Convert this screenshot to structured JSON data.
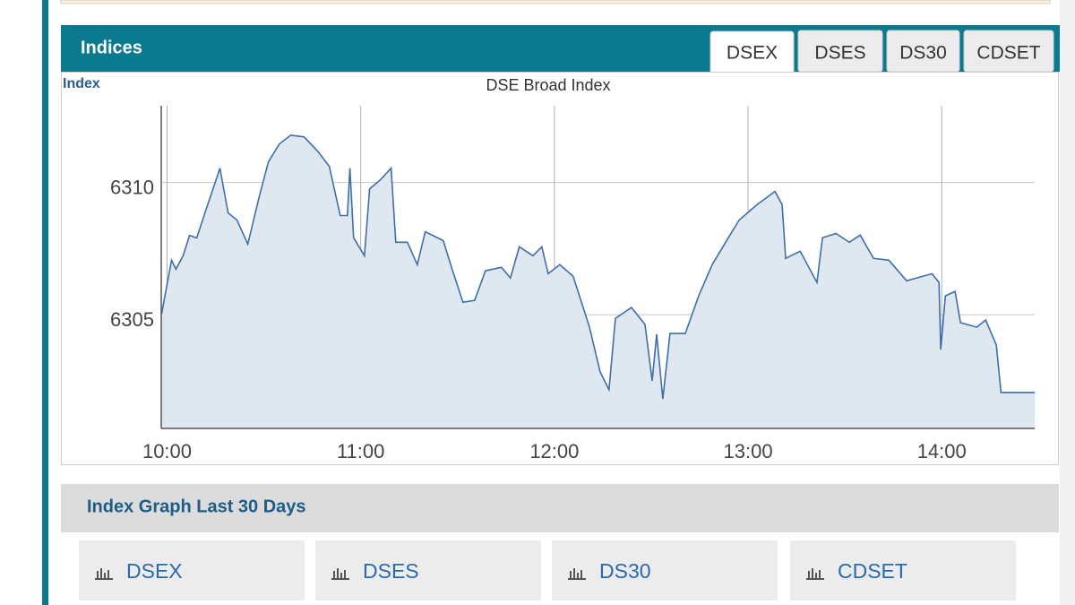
{
  "header": {
    "title": "Indices",
    "tabs": [
      "DSEX",
      "DSES",
      "DS30",
      "CDSET"
    ]
  },
  "chart_data": {
    "type": "line",
    "title": "DSE Broad Index",
    "y_label": "Index",
    "x": [
      9.972,
      10.023,
      10.046,
      10.083,
      10.116,
      10.153,
      10.199,
      10.245,
      10.273,
      10.315,
      10.361,
      10.417,
      10.477,
      10.523,
      10.579,
      10.639,
      10.708,
      10.778,
      10.838,
      10.894,
      10.931,
      10.944,
      10.963,
      11.019,
      11.046,
      11.102,
      11.157,
      11.181,
      11.241,
      11.292,
      11.333,
      11.426,
      11.472,
      11.528,
      11.588,
      11.644,
      11.727,
      11.773,
      11.819,
      11.889,
      11.935,
      11.968,
      12.028,
      12.097,
      12.181,
      12.236,
      12.282,
      12.315,
      12.398,
      12.468,
      12.505,
      12.528,
      12.56,
      12.597,
      12.676,
      12.745,
      12.815,
      12.884,
      12.954,
      13.046,
      13.139,
      13.176,
      13.194,
      13.269,
      13.356,
      13.384,
      13.454,
      13.523,
      13.579,
      13.648,
      13.727,
      13.819,
      13.949,
      13.986,
      13.995,
      14.019,
      14.069,
      14.097,
      14.181,
      14.227,
      14.282,
      14.306,
      14.481
    ],
    "values": [
      6305.03,
      6307.06,
      6306.72,
      6307.23,
      6308.0,
      6307.9,
      6308.92,
      6309.93,
      6310.54,
      6308.85,
      6308.58,
      6307.67,
      6309.49,
      6310.78,
      6311.45,
      6311.79,
      6311.72,
      6311.18,
      6310.61,
      6308.75,
      6308.75,
      6310.54,
      6307.91,
      6307.23,
      6309.76,
      6310.1,
      6310.54,
      6307.74,
      6307.74,
      6306.89,
      6308.14,
      6307.8,
      6306.72,
      6305.47,
      6305.54,
      6306.66,
      6306.79,
      6306.39,
      6307.57,
      6307.23,
      6307.57,
      6306.55,
      6306.89,
      6306.45,
      6304.53,
      6302.84,
      6302.16,
      6304.86,
      6305.27,
      6304.63,
      6302.5,
      6304.26,
      6301.82,
      6304.29,
      6304.29,
      6305.71,
      6306.89,
      6307.74,
      6308.58,
      6309.16,
      6309.66,
      6309.16,
      6307.13,
      6307.4,
      6306.22,
      6307.91,
      6308.07,
      6307.74,
      6308.01,
      6307.13,
      6307.06,
      6306.28,
      6306.55,
      6306.22,
      6303.68,
      6305.71,
      6305.88,
      6304.7,
      6304.53,
      6304.8,
      6303.85,
      6302.06,
      6302.06
    ],
    "color": "#3f6fa6",
    "fill": "#dfe7f1",
    "xlim": [
      9.97,
      14.48
    ],
    "ylim": [
      6300.7,
      6312.9
    ],
    "xticks": [
      {
        "value": 10,
        "label": "10:00"
      },
      {
        "value": 11,
        "label": "11:00"
      },
      {
        "value": 12,
        "label": "12:00"
      },
      {
        "value": 13,
        "label": "13:00"
      },
      {
        "value": 14,
        "label": "14:00"
      }
    ],
    "yticks": [
      6305,
      6310
    ],
    "grid": true
  },
  "section": {
    "title": "Index Graph Last 30 Days",
    "buttons": [
      "DSEX",
      "DSES",
      "DS30",
      "CDSET"
    ]
  }
}
